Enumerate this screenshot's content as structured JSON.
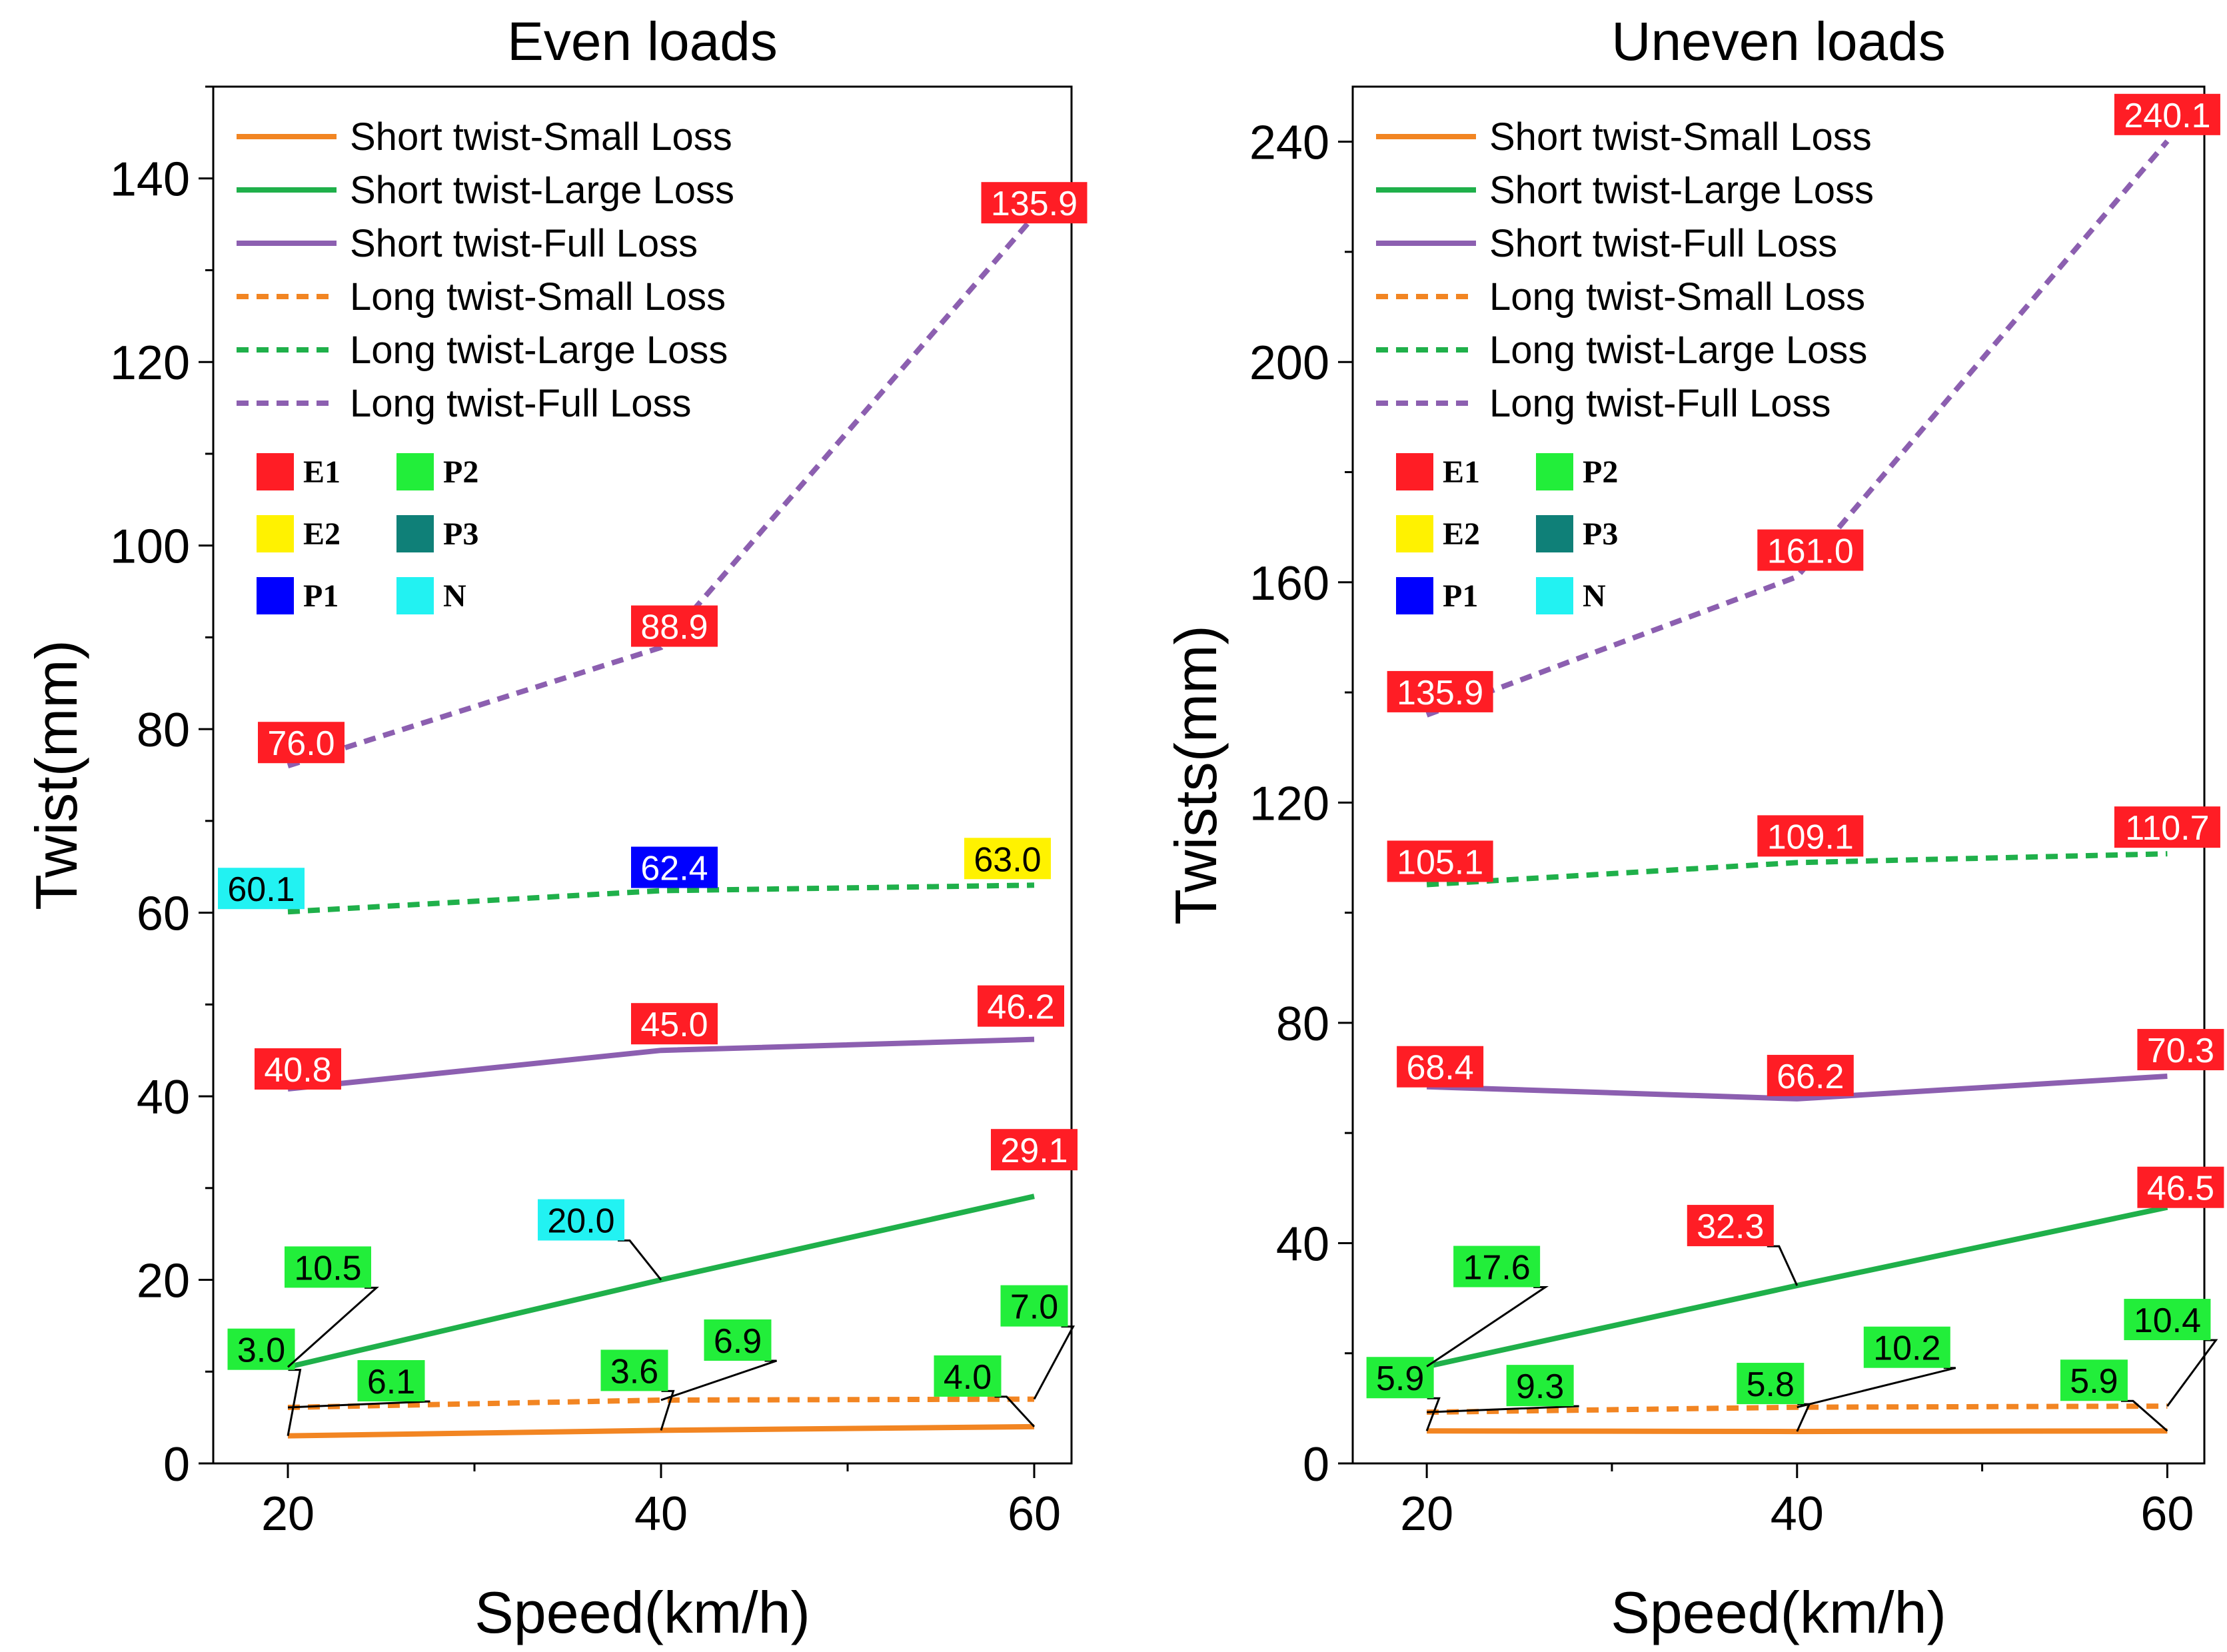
{
  "chart_data": [
    {
      "type": "line",
      "title": "Even loads",
      "xlabel": "Speed(km/h)",
      "ylabel": "Twist(mm)",
      "xlim": [
        16,
        62
      ],
      "ylim": [
        0,
        150
      ],
      "xticks": [
        20,
        40,
        60
      ],
      "yticks": [
        0,
        20,
        40,
        60,
        80,
        100,
        120,
        140
      ],
      "x": [
        20,
        40,
        60
      ],
      "series": [
        {
          "name": "Short twist-Small Loss",
          "color": "#f28522",
          "dash": false,
          "values": [
            3.0,
            3.6,
            4.0
          ],
          "labels": [
            "3.0",
            "3.6",
            "4.0"
          ],
          "categories": [
            "P2",
            "P2",
            "P2"
          ]
        },
        {
          "name": "Short twist-Large Loss",
          "color": "#1fb04a",
          "dash": false,
          "values": [
            10.5,
            20.0,
            29.1
          ],
          "labels": [
            "10.5",
            "20.0",
            "29.1"
          ],
          "categories": [
            "P2",
            "N",
            "E1"
          ]
        },
        {
          "name": "Short twist-Full Loss",
          "color": "#8c5fb0",
          "dash": false,
          "values": [
            40.8,
            45.0,
            46.2
          ],
          "labels": [
            "40.8",
            "45.0",
            "46.2"
          ],
          "categories": [
            "E1",
            "E1",
            "E1"
          ]
        },
        {
          "name": "Long twist-Small Loss",
          "color": "#f28522",
          "dash": true,
          "values": [
            6.1,
            6.9,
            7.0
          ],
          "labels": [
            "6.1",
            "6.9",
            "7.0"
          ],
          "categories": [
            "P2",
            "P2",
            "P2"
          ]
        },
        {
          "name": "Long twist-Large Loss",
          "color": "#1fb04a",
          "dash": true,
          "values": [
            60.1,
            62.4,
            63.0
          ],
          "labels": [
            "60.1",
            "62.4",
            "63.0"
          ],
          "categories": [
            "N",
            "P1",
            "E2"
          ]
        },
        {
          "name": "Long twist-Full Loss",
          "color": "#8c5fb0",
          "dash": true,
          "values": [
            76.0,
            88.9,
            135.9
          ],
          "labels": [
            "76.0",
            "88.9",
            "135.9"
          ],
          "categories": [
            "E1",
            "E1",
            "E1"
          ]
        }
      ]
    },
    {
      "type": "line",
      "title": "Uneven loads",
      "xlabel": "Speed(km/h)",
      "ylabel": "Twists(mm)",
      "xlim": [
        16,
        62
      ],
      "ylim": [
        0,
        250
      ],
      "xticks": [
        20,
        40,
        60
      ],
      "yticks": [
        0,
        40,
        80,
        120,
        160,
        200,
        240
      ],
      "x": [
        20,
        40,
        60
      ],
      "series": [
        {
          "name": "Short twist-Small Loss",
          "color": "#f28522",
          "dash": false,
          "values": [
            5.9,
            5.8,
            5.9
          ],
          "labels": [
            "5.9",
            "5.8",
            "5.9"
          ],
          "categories": [
            "P2",
            "P2",
            "P2"
          ]
        },
        {
          "name": "Short twist-Large Loss",
          "color": "#1fb04a",
          "dash": false,
          "values": [
            17.6,
            32.3,
            46.5
          ],
          "labels": [
            "17.6",
            "32.3",
            "46.5"
          ],
          "categories": [
            "P2",
            "E1",
            "E1"
          ]
        },
        {
          "name": "Short twist-Full Loss",
          "color": "#8c5fb0",
          "dash": false,
          "values": [
            68.4,
            66.2,
            70.3
          ],
          "labels": [
            "68.4",
            "66.2",
            "70.3"
          ],
          "categories": [
            "E1",
            "E1",
            "E1"
          ]
        },
        {
          "name": "Long twist-Small Loss",
          "color": "#f28522",
          "dash": true,
          "values": [
            9.3,
            10.2,
            10.4
          ],
          "labels": [
            "9.3",
            "10.2",
            "10.4"
          ],
          "categories": [
            "P2",
            "P2",
            "P2"
          ]
        },
        {
          "name": "Long twist-Large Loss",
          "color": "#1fb04a",
          "dash": true,
          "values": [
            105.1,
            109.1,
            110.7
          ],
          "labels": [
            "105.1",
            "109.1",
            "110.7"
          ],
          "categories": [
            "E1",
            "E1",
            "E1"
          ]
        },
        {
          "name": "Long twist-Full Loss",
          "color": "#8c5fb0",
          "dash": true,
          "values": [
            135.9,
            161.0,
            240.1
          ],
          "labels": [
            "135.9",
            "161.0",
            "240.1"
          ],
          "categories": [
            "E1",
            "E1",
            "E1"
          ]
        }
      ]
    }
  ],
  "category_legend": [
    {
      "code": "E1",
      "color": "#ff1d25"
    },
    {
      "code": "P2",
      "color": "#22ee3a"
    },
    {
      "code": "E2",
      "color": "#fff200"
    },
    {
      "code": "P3",
      "color": "#0f8078"
    },
    {
      "code": "P1",
      "color": "#0000ff"
    },
    {
      "code": "N",
      "color": "#22f2f2"
    }
  ]
}
